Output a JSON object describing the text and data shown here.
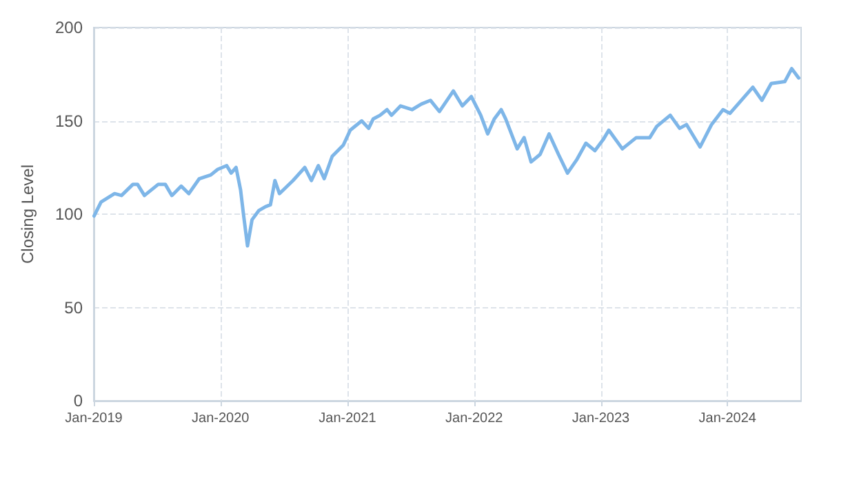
{
  "chart_data": {
    "type": "line",
    "ylabel": "Closing Level",
    "x": [
      "2019-01-02",
      "2019-01-22",
      "2019-03-02",
      "2019-03-22",
      "2019-04-24",
      "2019-05-07",
      "2019-05-27",
      "2019-07-06",
      "2019-07-26",
      "2019-08-14",
      "2019-09-10",
      "2019-10-02",
      "2019-11-01",
      "2019-12-04",
      "2019-12-24",
      "2020-01-19",
      "2020-02-01",
      "2020-02-15",
      "2020-02-28",
      "2020-03-08",
      "2020-03-19",
      "2020-04-01",
      "2020-04-21",
      "2020-05-10",
      "2020-05-24",
      "2020-06-06",
      "2020-06-19",
      "2020-07-28",
      "2020-08-31",
      "2020-09-19",
      "2020-10-09",
      "2020-10-26",
      "2020-11-18",
      "2020-12-20",
      "2021-01-09",
      "2021-02-11",
      "2021-03-03",
      "2021-03-16",
      "2021-04-05",
      "2021-04-25",
      "2021-05-08",
      "2021-06-03",
      "2021-07-06",
      "2021-08-02",
      "2021-08-28",
      "2021-09-23",
      "2021-11-02",
      "2021-11-28",
      "2021-12-24",
      "2022-01-20",
      "2022-02-09",
      "2022-02-28",
      "2022-03-20",
      "2022-04-02",
      "2022-05-05",
      "2022-05-25",
      "2022-06-14",
      "2022-07-10",
      "2022-08-05",
      "2022-09-01",
      "2022-09-27",
      "2022-10-23",
      "2022-11-19",
      "2022-12-15",
      "2023-01-08",
      "2023-01-24",
      "2023-03-04",
      "2023-04-13",
      "2023-05-22",
      "2023-06-11",
      "2023-07-20",
      "2023-08-16",
      "2023-09-05",
      "2023-10-14",
      "2023-11-16",
      "2023-12-19",
      "2024-01-08",
      "2024-02-10",
      "2024-03-14",
      "2024-04-09",
      "2024-05-06",
      "2024-06-14",
      "2024-07-04",
      "2024-07-24"
    ],
    "series": [
      {
        "color": "#7eb6e8",
        "values": [
          99,
          106.5,
          111,
          110,
          116,
          116,
          110,
          116,
          116,
          110,
          115,
          111,
          119,
          121,
          124,
          126,
          122,
          125,
          113,
          99,
          83,
          97,
          102,
          104,
          105,
          118,
          111,
          118,
          125,
          118,
          126,
          119,
          131,
          137,
          145,
          150,
          146,
          151,
          153,
          156,
          153,
          158,
          156,
          159,
          161,
          155,
          166,
          158,
          163,
          153,
          143,
          151,
          156,
          151,
          135,
          141,
          128,
          132,
          143,
          132,
          122,
          129,
          138,
          134,
          140,
          145,
          135,
          141,
          141,
          147,
          153,
          146,
          148,
          136,
          148,
          156,
          154,
          161,
          168,
          161,
          170,
          171,
          178,
          173
        ]
      }
    ],
    "xlim": [
      "2019-01-01",
      "2024-07-31"
    ],
    "xticks": [
      {
        "value": "2019-01-01",
        "label": "Jan-2019"
      },
      {
        "value": "2020-01-01",
        "label": "Jan-2020"
      },
      {
        "value": "2021-01-01",
        "label": "Jan-2021"
      },
      {
        "value": "2022-01-01",
        "label": "Jan-2022"
      },
      {
        "value": "2023-01-01",
        "label": "Jan-2023"
      },
      {
        "value": "2024-01-01",
        "label": "Jan-2024"
      }
    ],
    "ylim": [
      0,
      200
    ],
    "yticks": [
      0,
      50,
      100,
      150,
      200
    ],
    "grid": true,
    "marker": "none",
    "line_style": "solid"
  }
}
